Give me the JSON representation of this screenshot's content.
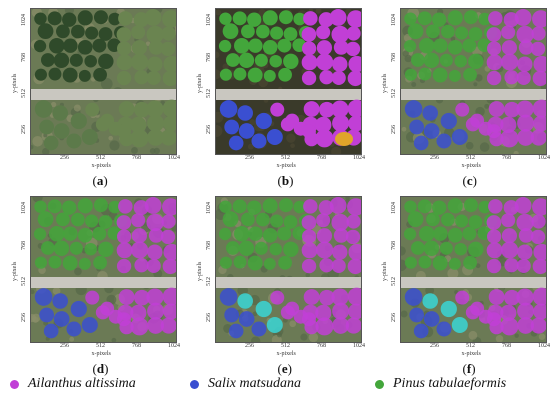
{
  "panels": [
    {
      "letter": "a",
      "caption": "(a)",
      "mode": "raw"
    },
    {
      "letter": "b",
      "caption": "(b)",
      "mode": "label"
    },
    {
      "letter": "c",
      "caption": "(c)",
      "mode": "overlay"
    },
    {
      "letter": "d",
      "caption": "(d)",
      "mode": "overlay"
    },
    {
      "letter": "e",
      "caption": "(e)",
      "mode": "overlay-partial"
    },
    {
      "letter": "f",
      "caption": "(f)",
      "mode": "overlay-partial"
    }
  ],
  "axes": {
    "xlabel": "x-pixels",
    "ylabel": "y-pixels",
    "xticks": [
      "256",
      "512",
      "768",
      "1024"
    ],
    "yticks": [
      "1024",
      "768",
      "512",
      "256"
    ]
  },
  "legend": [
    {
      "name": "Ailanthus altissima",
      "color": "#c13fd6"
    },
    {
      "name": "Salix matsudana",
      "color": "#3a4fd1"
    },
    {
      "name": "Pinus tabulaeformis",
      "color": "#43a63b"
    }
  ]
}
